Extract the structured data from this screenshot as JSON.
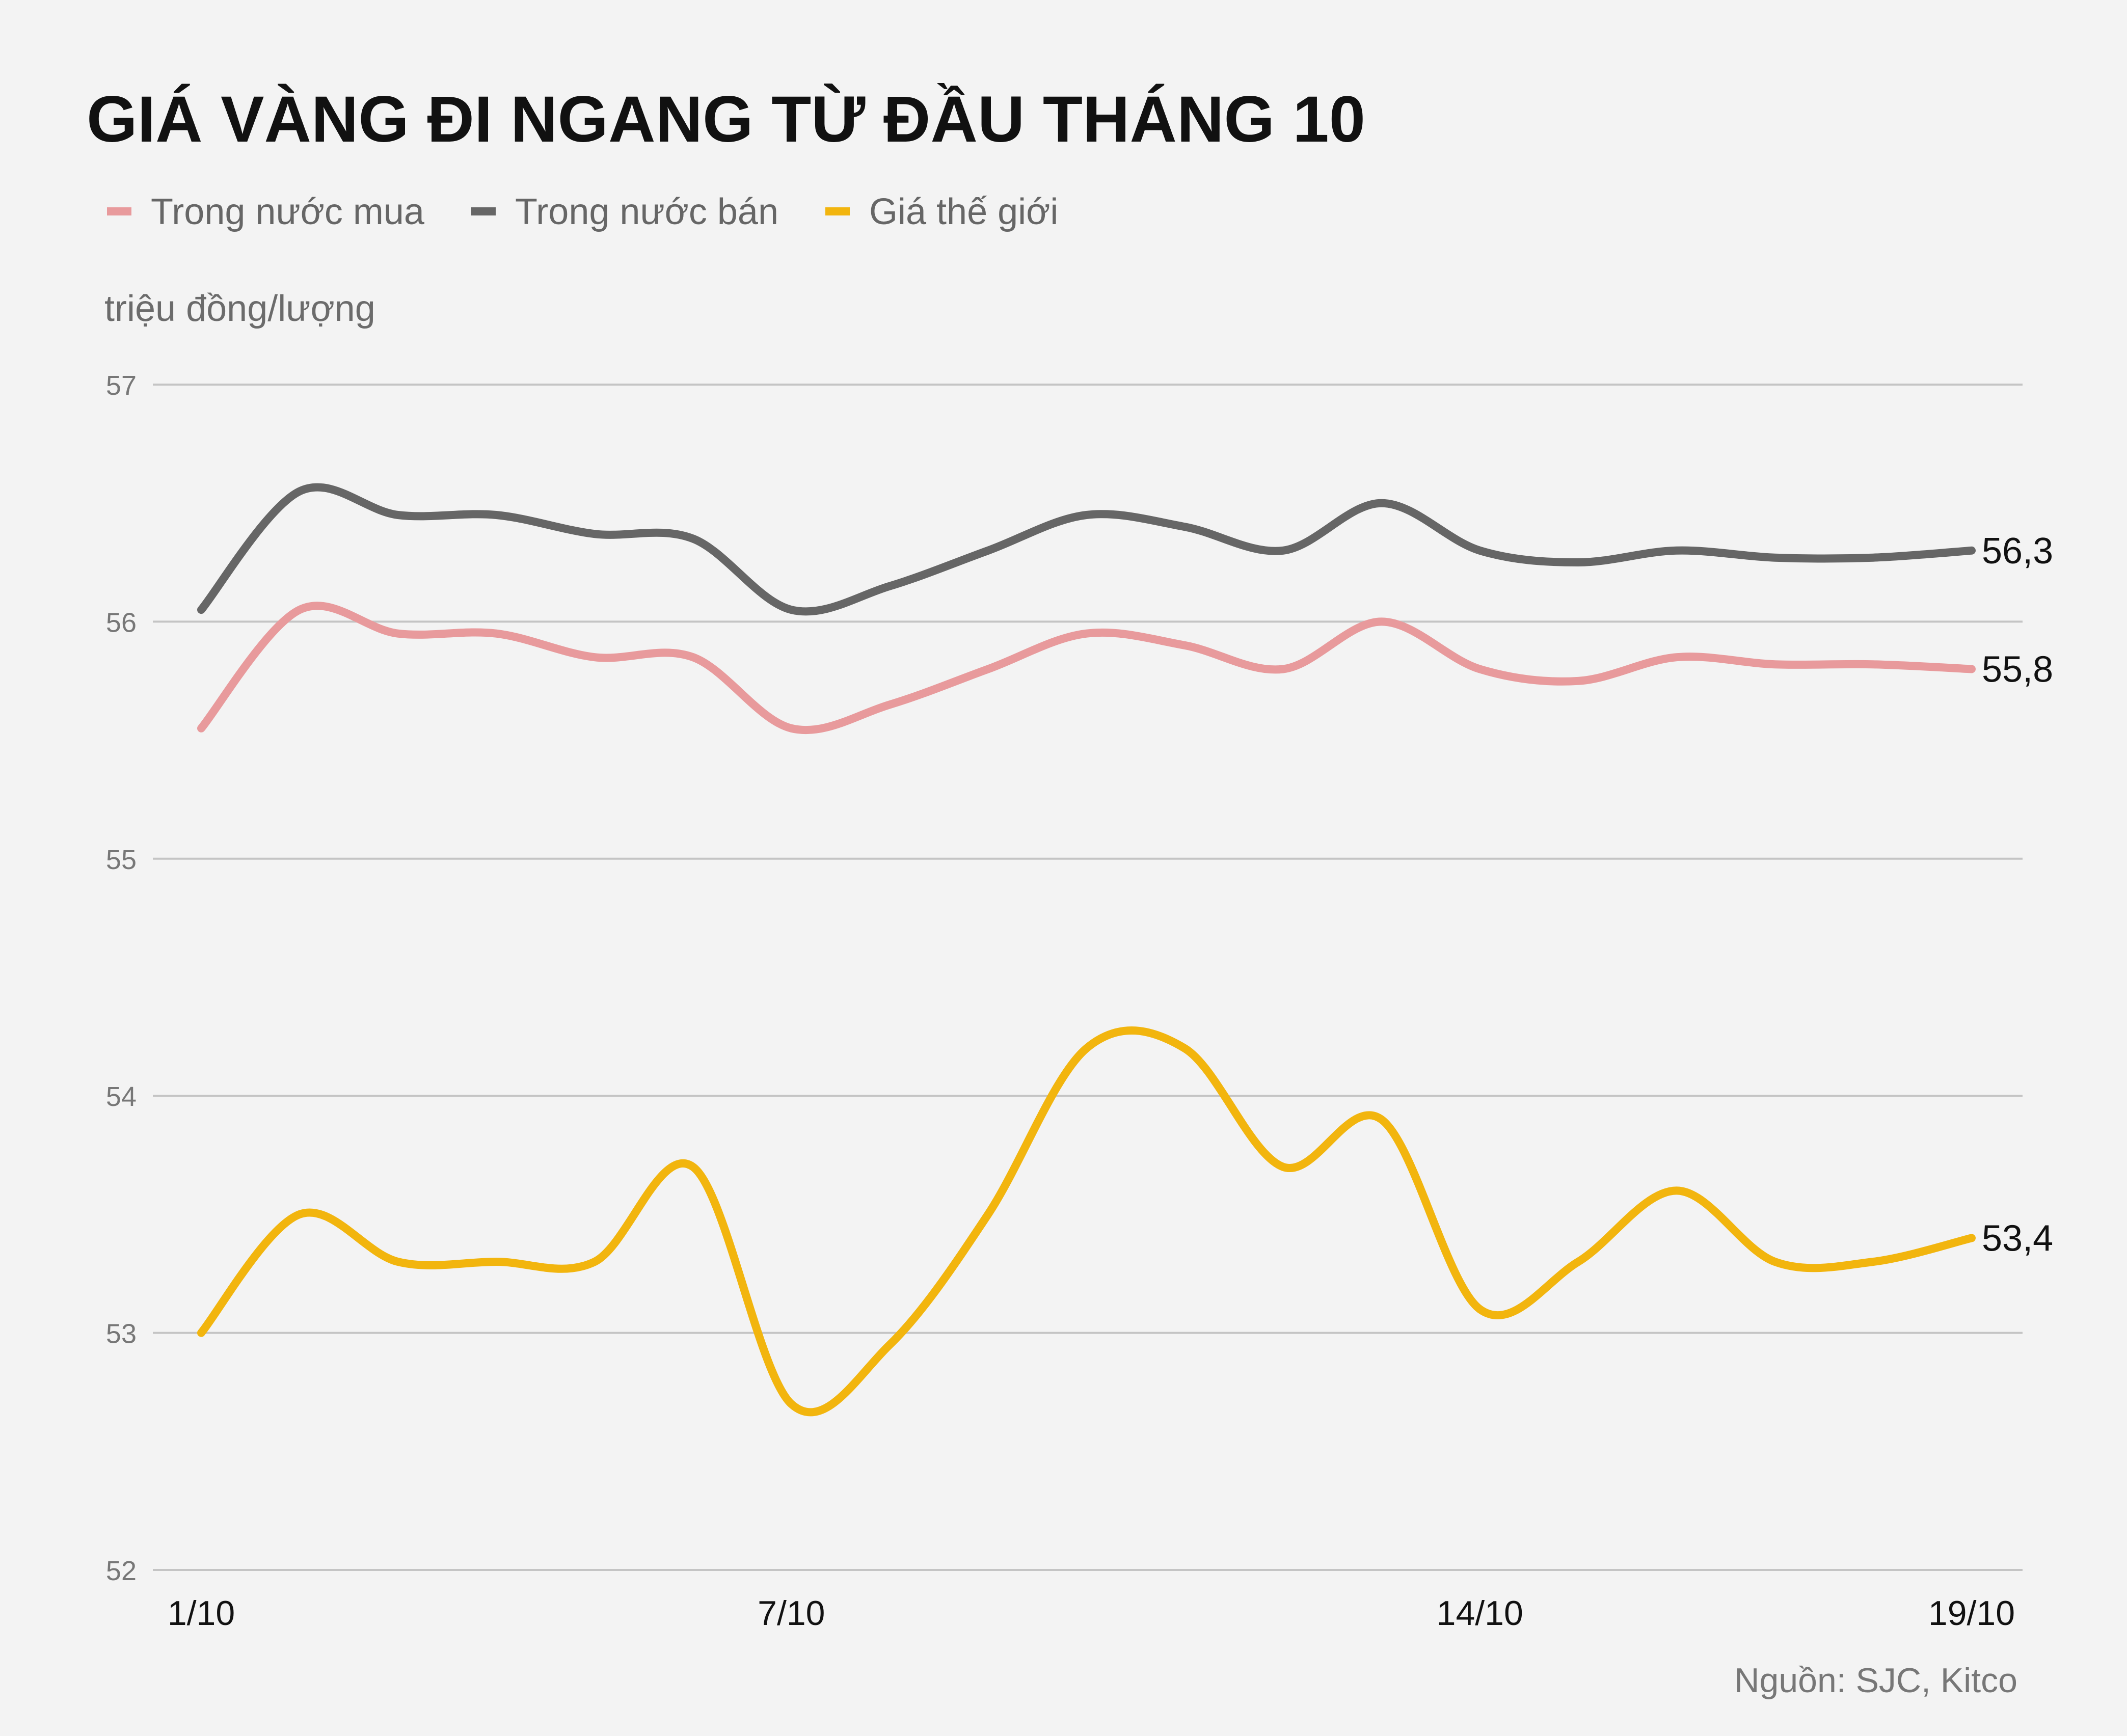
{
  "chart_data": {
    "type": "line",
    "title": "GIÁ VÀNG ĐI NGANG TỪ ĐẦU THÁNG 10",
    "ylabel": "triệu đồng/lượng",
    "xlabel": "",
    "source": "Nguồn: SJC, Kitco",
    "ylim": [
      52,
      57
    ],
    "yticks": [
      "52",
      "53",
      "54",
      "55",
      "56",
      "57"
    ],
    "x": [
      1,
      2,
      3,
      4,
      5,
      6,
      7,
      8,
      9,
      10,
      11,
      12,
      13,
      14,
      15,
      16,
      17,
      18,
      19
    ],
    "xtick_values": [
      1,
      7,
      14,
      19
    ],
    "xtick_labels": [
      "1/10",
      "7/10",
      "14/10",
      "19/10"
    ],
    "grid": true,
    "legend_position": "top-left",
    "series": [
      {
        "name": "Trong nước mua",
        "color": "#e89a9c",
        "values": [
          55.55,
          56.05,
          55.95,
          55.95,
          55.85,
          55.85,
          55.55,
          55.65,
          55.8,
          55.95,
          55.9,
          55.8,
          56.0,
          55.8,
          55.75,
          55.85,
          55.82,
          55.82,
          55.8
        ],
        "end_label": "55,8"
      },
      {
        "name": "Trong nước bán",
        "color": "#666666",
        "values": [
          56.05,
          56.55,
          56.45,
          56.45,
          56.37,
          56.35,
          56.05,
          56.15,
          56.3,
          56.45,
          56.4,
          56.3,
          56.5,
          56.3,
          56.25,
          56.3,
          56.27,
          56.27,
          56.3
        ],
        "end_label": "56,3"
      },
      {
        "name": "Giá thế giới",
        "color": "#f2b50e",
        "values": [
          53.0,
          53.5,
          53.3,
          53.3,
          53.3,
          53.7,
          52.7,
          52.95,
          53.5,
          54.2,
          54.2,
          53.7,
          53.9,
          53.1,
          53.3,
          53.6,
          53.3,
          53.3,
          53.4
        ],
        "end_label": "53,4"
      }
    ]
  }
}
